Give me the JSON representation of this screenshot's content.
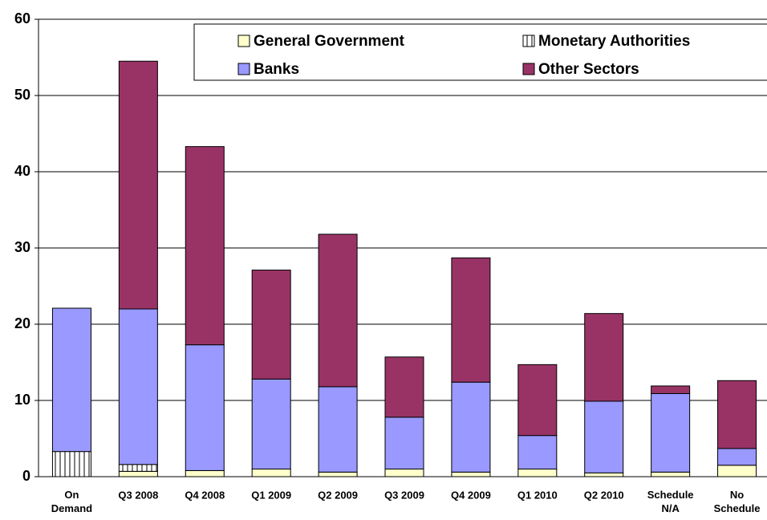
{
  "chart_data": {
    "type": "stacked_bar",
    "categories": [
      "On\nDemand",
      "Q3 2008",
      "Q4 2008",
      "Q1 2009",
      "Q2 2009",
      "Q3 2009",
      "Q4 2009",
      "Q1 2010",
      "Q2 2010",
      "Schedule\nN/A",
      "No\nSchedule"
    ],
    "series": [
      {
        "name": "General Government",
        "color": "#ffffcc",
        "values": [
          0,
          0.7,
          0.8,
          1.0,
          0.6,
          1.0,
          0.6,
          1.0,
          0.5,
          0.6,
          1.5
        ]
      },
      {
        "name": "Monetary Authorities",
        "color": "#ffffff",
        "hatch": "vertical",
        "values": [
          3.3,
          0.9,
          0,
          0,
          0,
          0,
          0,
          0,
          0,
          0,
          0
        ]
      },
      {
        "name": "Banks",
        "color": "#9999ff",
        "values": [
          18.8,
          20.4,
          16.5,
          11.8,
          11.2,
          6.8,
          11.8,
          4.4,
          9.4,
          10.3,
          2.2
        ]
      },
      {
        "name": "Other Sectors",
        "color": "#993366",
        "values": [
          0,
          32.5,
          26.0,
          14.3,
          20.0,
          7.9,
          16.3,
          9.3,
          11.5,
          1.0,
          8.9
        ]
      }
    ],
    "ylim": [
      0,
      60
    ],
    "yticks": [
      0,
      10,
      20,
      30,
      40,
      50,
      60
    ],
    "grid": true,
    "legend": "top-right"
  }
}
